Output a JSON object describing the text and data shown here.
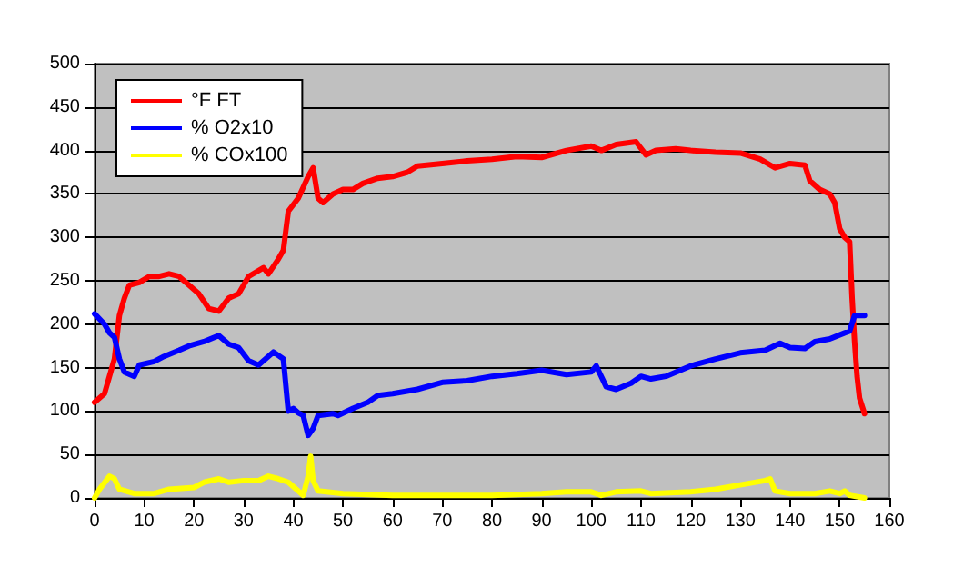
{
  "chart_data": {
    "type": "line",
    "xlim": [
      0,
      160
    ],
    "xticks": [
      0,
      10,
      20,
      30,
      40,
      50,
      60,
      70,
      80,
      90,
      100,
      110,
      120,
      130,
      140,
      150,
      160
    ],
    "ylim": [
      0,
      500
    ],
    "yticks": [
      0,
      50,
      100,
      150,
      200,
      250,
      300,
      350,
      400,
      450,
      500
    ],
    "grid": "y",
    "legend": "top left",
    "marker": "none",
    "line_style": "solid",
    "series": [
      {
        "name": "°F FT",
        "color": "#ff0000",
        "x": [
          0,
          2,
          3,
          4,
          5,
          6,
          7,
          9,
          11,
          13,
          15,
          17,
          19,
          21,
          23,
          25,
          27,
          29,
          31,
          34,
          35,
          37,
          38,
          39,
          41,
          43,
          44,
          45,
          46,
          48,
          50,
          52,
          54,
          57,
          60,
          63,
          65,
          70,
          75,
          80,
          85,
          90,
          95,
          100,
          102,
          105,
          109,
          111,
          113,
          117,
          120,
          125,
          130,
          134,
          137,
          140,
          143,
          144,
          146,
          148,
          149,
          150,
          151,
          152,
          152.5,
          153,
          153.5,
          154,
          155
        ],
        "values": [
          110,
          120,
          140,
          160,
          210,
          230,
          245,
          248,
          255,
          255,
          258,
          255,
          245,
          235,
          218,
          215,
          230,
          235,
          255,
          265,
          258,
          275,
          285,
          330,
          345,
          370,
          380,
          345,
          340,
          350,
          355,
          355,
          362,
          368,
          370,
          375,
          382,
          385,
          388,
          390,
          393,
          392,
          400,
          405,
          400,
          407,
          410,
          395,
          400,
          402,
          400,
          398,
          397,
          390,
          380,
          385,
          383,
          365,
          355,
          350,
          340,
          310,
          300,
          295,
          230,
          180,
          140,
          115,
          97
        ]
      },
      {
        "name": "% O2x10",
        "color": "#0000ff",
        "x": [
          0,
          2,
          3,
          4,
          5,
          6,
          8,
          9,
          12,
          14,
          17,
          19,
          22,
          25,
          27,
          29,
          31,
          33,
          36,
          38,
          39,
          40,
          41,
          42,
          43,
          44,
          45,
          48,
          49,
          52,
          55,
          57,
          60,
          65,
          70,
          75,
          80,
          85,
          90,
          95,
          100,
          101,
          103,
          105,
          108,
          110,
          112,
          115,
          120,
          125,
          130,
          135,
          138,
          140,
          143,
          145,
          148,
          151,
          152,
          153,
          155
        ],
        "values": [
          212,
          200,
          190,
          185,
          160,
          145,
          140,
          153,
          157,
          163,
          170,
          175,
          180,
          187,
          177,
          173,
          158,
          153,
          168,
          160,
          100,
          103,
          98,
          95,
          72,
          80,
          95,
          97,
          95,
          103,
          110,
          118,
          120,
          125,
          133,
          135,
          140,
          143,
          147,
          142,
          145,
          152,
          128,
          125,
          132,
          140,
          137,
          140,
          152,
          160,
          167,
          170,
          178,
          173,
          172,
          180,
          183,
          190,
          192,
          210,
          210
        ]
      },
      {
        "name": "% COx100",
        "color": "#ffff00",
        "x": [
          0,
          1,
          3,
          4,
          5,
          8,
          12,
          15,
          20,
          22,
          25,
          27,
          30,
          33,
          35,
          37,
          39,
          41,
          42,
          43,
          43.5,
          44,
          45,
          50,
          60,
          70,
          80,
          90,
          95,
          100,
          102,
          105,
          110,
          112,
          120,
          125,
          130,
          135,
          136,
          137,
          140,
          145,
          148,
          150,
          151,
          152,
          155
        ],
        "values": [
          0,
          10,
          25,
          22,
          10,
          5,
          5,
          10,
          12,
          18,
          22,
          18,
          20,
          20,
          25,
          22,
          18,
          8,
          3,
          25,
          48,
          20,
          8,
          5,
          3,
          3,
          3,
          5,
          7,
          7,
          3,
          7,
          8,
          5,
          7,
          10,
          15,
          20,
          22,
          8,
          5,
          5,
          8,
          5,
          8,
          3,
          0
        ]
      }
    ]
  }
}
